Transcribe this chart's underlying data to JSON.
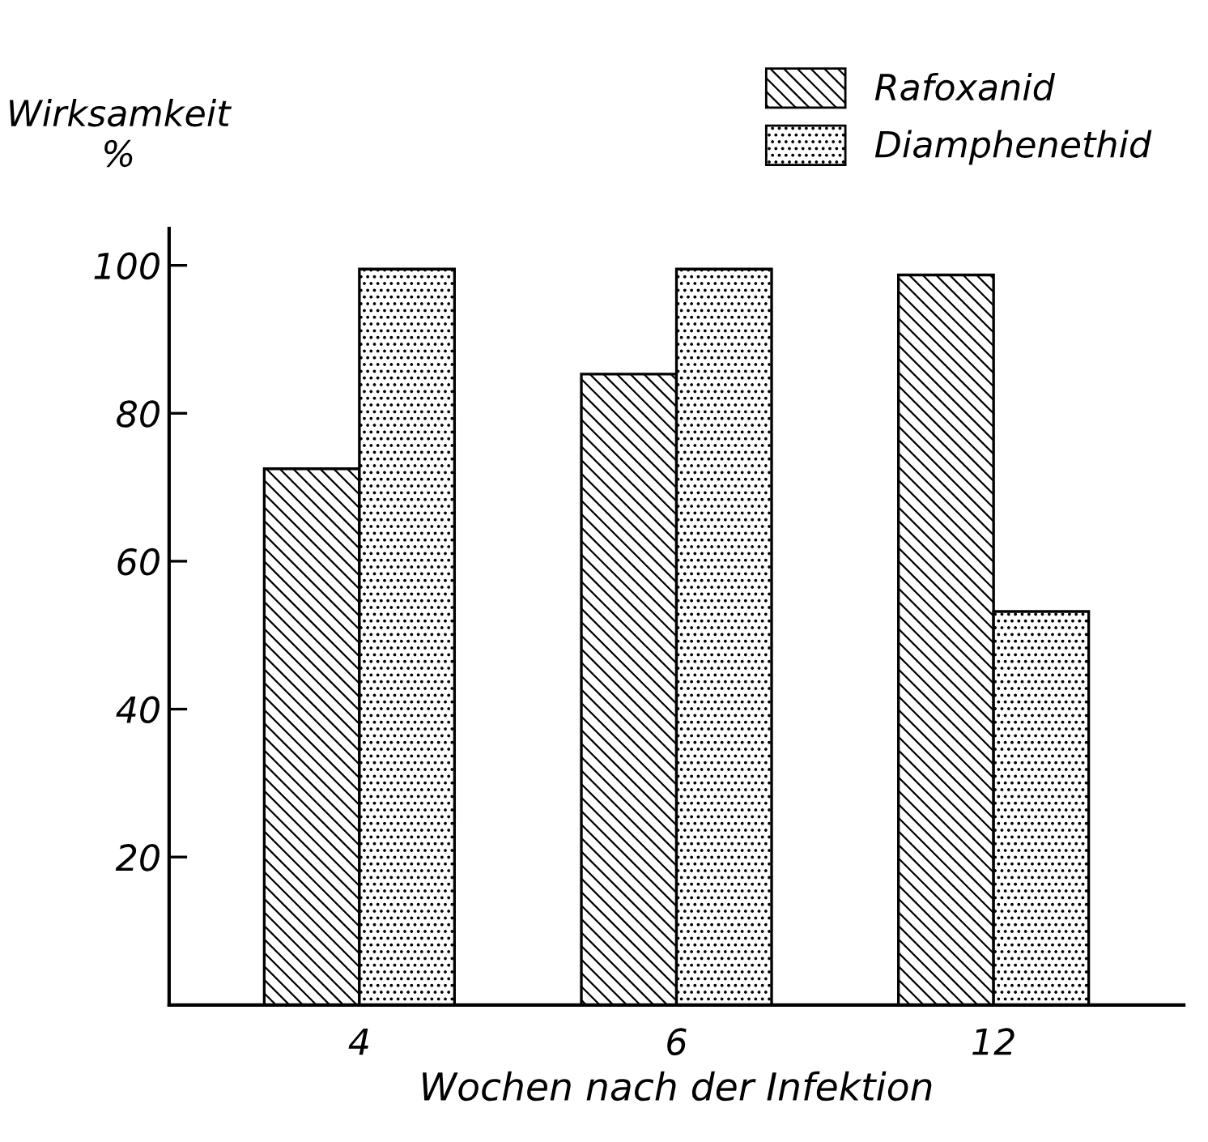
{
  "chart_data": {
    "type": "bar",
    "xlabel": "Wochen nach der Infektion",
    "ylabel": "Wirksamkeit\n%",
    "categories": [
      "4",
      "6",
      "12"
    ],
    "series": [
      {
        "name": "Rafoxanid",
        "color": "#000000",
        "values": [
          72.5,
          85.3,
          98.7
        ]
      },
      {
        "name": "Diamphenethid",
        "color": "#000000",
        "values": [
          99.5,
          99.5,
          53.2
        ]
      }
    ],
    "ylim": [
      0,
      105
    ],
    "yticks": [
      20,
      40,
      60,
      80,
      100
    ],
    "grid": false,
    "legend": "top right"
  }
}
